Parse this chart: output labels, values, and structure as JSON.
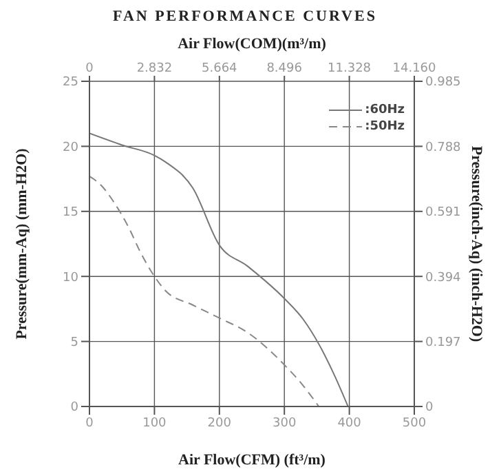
{
  "chart_data": {
    "type": "line",
    "title": "FAN PERFORMANCE CURVES",
    "xlabel": "Air Flow(CFM) (ft³/m)",
    "x2label": "Air Flow(COM)(m³/m)",
    "ylabel": "Pressure(mm-Aq) (mm-H2O)",
    "y2label": "Pressure(inch-Aq) (inch-H2O)",
    "xlim": [
      0,
      500
    ],
    "xticks": [
      0,
      100,
      200,
      300,
      400,
      500
    ],
    "x2lim": [
      0,
      14.16
    ],
    "x2ticks": [
      0,
      2.832,
      5.664,
      8.496,
      11.328,
      {
        "value": 14.16,
        "label": "14.160"
      }
    ],
    "ylim": [
      0,
      25
    ],
    "yticks": [
      0,
      5,
      10,
      15,
      20,
      25
    ],
    "y2lim": [
      0,
      0.985
    ],
    "y2ticks": [
      0,
      0.197,
      0.394,
      0.591,
      0.788,
      0.985
    ],
    "grid": true,
    "legend": "top right",
    "marker": "none",
    "series": [
      {
        "name": ":60Hz",
        "color": "#777777",
        "line_style": "solid",
        "x": [
          0,
          50,
          100,
          117,
          159,
          200,
          243,
          300,
          329,
          353,
          378,
          398
        ],
        "values": [
          21,
          20.1,
          19.3,
          18.8,
          16.8,
          12.4,
          10.8,
          8.3,
          6.7,
          4.8,
          2.3,
          0
        ]
      },
      {
        "name": ":50Hz",
        "color": "#888888",
        "line_style": "dashed",
        "x": [
          0,
          18,
          39,
          60,
          78,
          100,
          117,
          159,
          200,
          243,
          300,
          329,
          353
        ],
        "values": [
          17.7,
          17,
          15.6,
          13.8,
          11.9,
          10,
          8.9,
          7.8,
          6.8,
          5.7,
          3.2,
          1.6,
          0
        ]
      }
    ]
  }
}
